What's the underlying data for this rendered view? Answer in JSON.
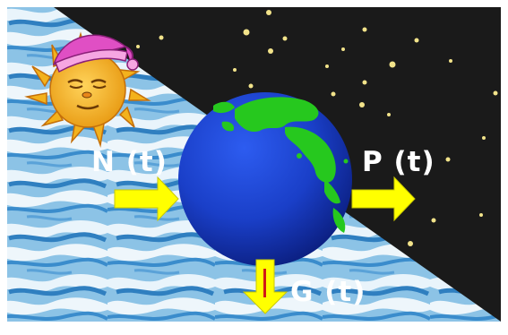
{
  "labels": {
    "incoming": "N (t)",
    "outgoing": "P (t)",
    "ground": "G (t)"
  },
  "colors": {
    "sky": "#1a1a1a",
    "star": "#f2e38a",
    "water_light": "#cfe6f5",
    "water_dark": "#2f7fc0",
    "earth_ocean": "#1a3fd0",
    "earth_land": "#26c81e",
    "arrow": "#ffff00",
    "sun": "#f3b21c",
    "cap": "#e04fc4"
  },
  "icons": {
    "sun": "sleepy-sun-icon",
    "earth": "earth-globe-icon",
    "arrow": "flow-arrow-icon"
  }
}
